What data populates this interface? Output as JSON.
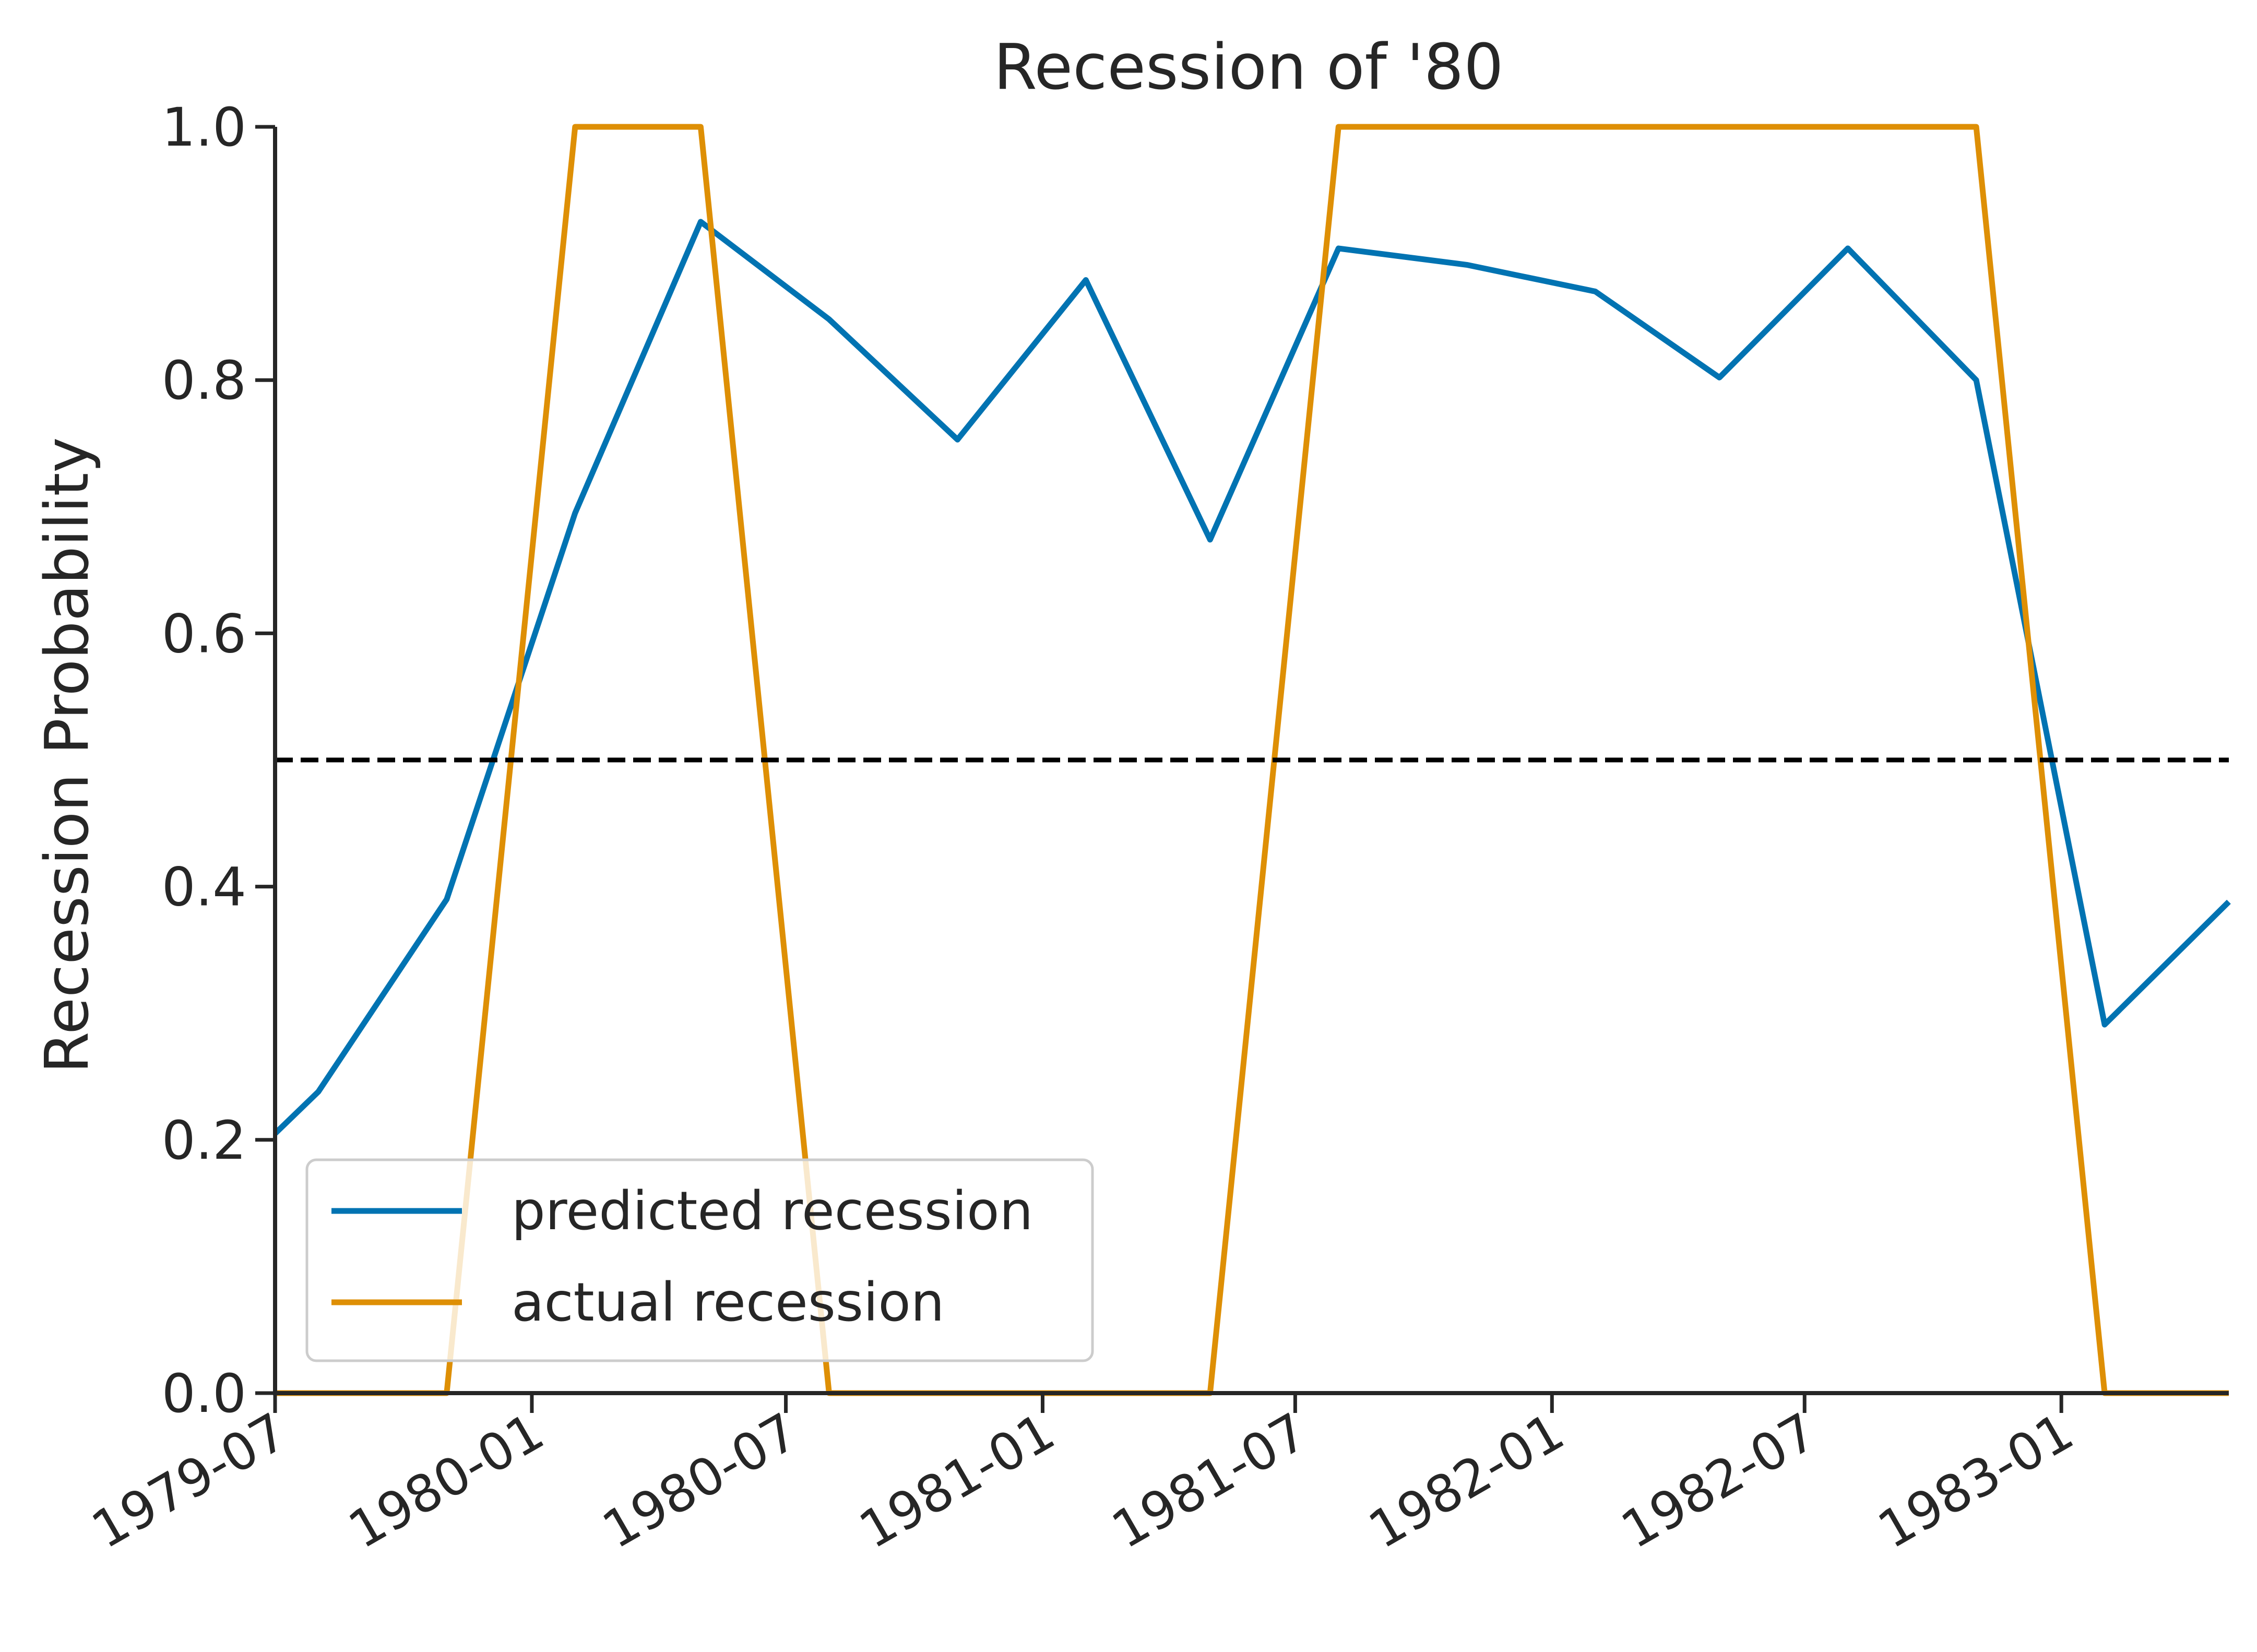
{
  "chart_data": {
    "type": "line",
    "title": "Recession of '80",
    "xlabel": "",
    "ylabel": "Recession Probability",
    "xlim": [
      "1979-07-01",
      "1983-05-01"
    ],
    "ylim": [
      0,
      1
    ],
    "x_ticks": [
      "1979-07",
      "1980-01",
      "1980-07",
      "1981-01",
      "1981-07",
      "1982-01",
      "1982-07",
      "1983-01"
    ],
    "y_ticks": [
      "0.0",
      "0.2",
      "0.4",
      "0.6",
      "0.8",
      "1.0"
    ],
    "grid": false,
    "legend_position": "lower left",
    "threshold": 0.5,
    "series": [
      {
        "name": "predicted recession",
        "color": "#0173b2",
        "x": [
          "1979-07-01",
          "1979-08-01",
          "1979-11-01",
          "1980-02-01",
          "1980-05-01",
          "1980-08-01",
          "1980-11-01",
          "1981-02-01",
          "1981-05-01",
          "1981-08-01",
          "1981-11-01",
          "1982-02-01",
          "1982-05-01",
          "1982-08-01",
          "1982-11-01",
          "1983-02-01",
          "1983-05-01"
        ],
        "y": [
          0.205,
          0.238,
          0.39,
          0.695,
          0.925,
          0.848,
          0.753,
          0.879,
          0.674,
          0.904,
          0.891,
          0.87,
          0.802,
          0.904,
          0.8,
          0.291,
          0.388
        ]
      },
      {
        "name": "actual recession",
        "color": "#de8f05",
        "x": [
          "1979-07-01",
          "1979-11-01",
          "1980-02-01",
          "1980-05-01",
          "1980-08-01",
          "1981-05-01",
          "1981-08-01",
          "1982-11-01",
          "1983-02-01",
          "1983-05-01"
        ],
        "y": [
          0,
          0,
          1,
          1,
          0,
          0,
          1,
          1,
          0,
          0
        ]
      }
    ]
  }
}
